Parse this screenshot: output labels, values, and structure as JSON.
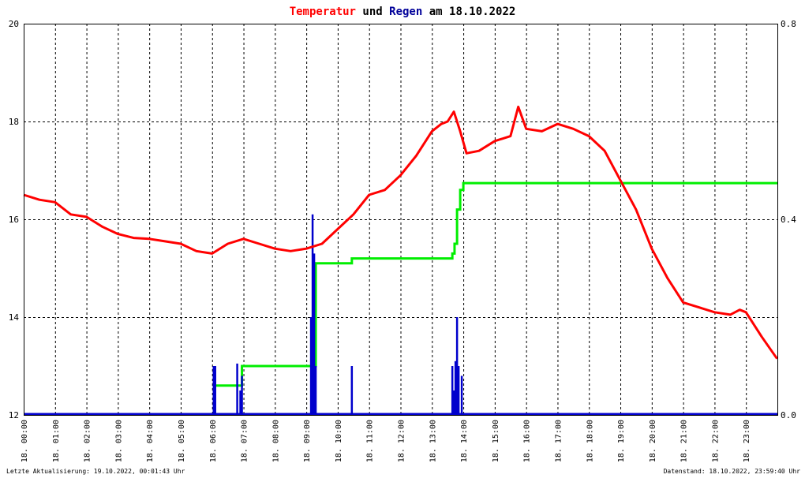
{
  "title": {
    "part1": "Temperatur",
    "part2": " und ",
    "part3": "Regen",
    "part4": " am 18.10.2022"
  },
  "colors": {
    "temperature": "#ff0000",
    "rain": "#0000cc",
    "rain_sum": "#00ee00",
    "title_temperature": "#ff0000",
    "title_rain": "#000099",
    "grid": "#000000"
  },
  "footer": {
    "left": "Letzte Aktualisierung: 19.10.2022, 00:01:43 Uhr",
    "right": "Datenstand: 18.10.2022, 23:59:40 Uhr"
  },
  "chart_data": {
    "type": "line",
    "title": "Temperatur und Regen am 18.10.2022",
    "x_unit": "hour",
    "xlim": [
      0,
      24
    ],
    "x_tick_labels": [
      "18. 00:00",
      "18. 01:00",
      "18. 02:00",
      "18. 03:00",
      "18. 04:00",
      "18. 05:00",
      "18. 06:00",
      "18. 07:00",
      "18. 08:00",
      "18. 09:00",
      "18. 10:00",
      "18. 11:00",
      "18. 12:00",
      "18. 13:00",
      "18. 14:00",
      "18. 15:00",
      "18. 16:00",
      "18. 17:00",
      "18. 18:00",
      "18. 19:00",
      "18. 20:00",
      "18. 21:00",
      "18. 22:00",
      "18. 23:00"
    ],
    "y_left": {
      "lim": [
        12,
        20
      ],
      "ticks": [
        "12",
        "14",
        "16",
        "18",
        "20"
      ]
    },
    "y_right": {
      "lim": [
        0,
        0.8
      ],
      "ticks": [
        "0.0",
        "0.4",
        "0.8"
      ]
    },
    "grid": true,
    "series": [
      {
        "name": "Temperatur",
        "axis": "left",
        "style": "line",
        "points": [
          [
            0,
            16.5
          ],
          [
            0.5,
            16.4
          ],
          [
            1,
            16.35
          ],
          [
            1.5,
            16.1
          ],
          [
            2,
            16.05
          ],
          [
            2.5,
            15.85
          ],
          [
            3,
            15.7
          ],
          [
            3.5,
            15.62
          ],
          [
            4,
            15.6
          ],
          [
            4.5,
            15.55
          ],
          [
            5,
            15.5
          ],
          [
            5.5,
            15.35
          ],
          [
            6,
            15.3
          ],
          [
            6.5,
            15.5
          ],
          [
            7,
            15.6
          ],
          [
            7.5,
            15.5
          ],
          [
            8,
            15.4
          ],
          [
            8.5,
            15.35
          ],
          [
            9,
            15.4
          ],
          [
            9.5,
            15.5
          ],
          [
            10,
            15.8
          ],
          [
            10.5,
            16.1
          ],
          [
            11,
            16.5
          ],
          [
            11.5,
            16.6
          ],
          [
            12,
            16.9
          ],
          [
            12.5,
            17.3
          ],
          [
            13,
            17.8
          ],
          [
            13.3,
            17.95
          ],
          [
            13.5,
            18.0
          ],
          [
            13.7,
            18.2
          ],
          [
            13.9,
            17.8
          ],
          [
            14.1,
            17.35
          ],
          [
            14.5,
            17.4
          ],
          [
            15,
            17.6
          ],
          [
            15.5,
            17.7
          ],
          [
            15.75,
            18.3
          ],
          [
            16,
            17.85
          ],
          [
            16.5,
            17.8
          ],
          [
            17,
            17.95
          ],
          [
            17.5,
            17.85
          ],
          [
            18,
            17.7
          ],
          [
            18.5,
            17.4
          ],
          [
            19,
            16.8
          ],
          [
            19.5,
            16.2
          ],
          [
            20,
            15.4
          ],
          [
            20.5,
            14.8
          ],
          [
            21,
            14.3
          ],
          [
            21.5,
            14.2
          ],
          [
            22,
            14.1
          ],
          [
            22.5,
            14.05
          ],
          [
            22.8,
            14.15
          ],
          [
            23,
            14.1
          ],
          [
            23.5,
            13.6
          ],
          [
            23.99,
            13.15
          ]
        ]
      },
      {
        "name": "Regen",
        "axis": "right",
        "style": "bars",
        "points": [
          [
            6.05,
            0.1
          ],
          [
            6.1,
            0.1
          ],
          [
            6.8,
            0.105
          ],
          [
            6.9,
            0.05
          ],
          [
            6.95,
            0.08
          ],
          [
            9.15,
            0.2
          ],
          [
            9.2,
            0.41
          ],
          [
            9.25,
            0.33
          ],
          [
            9.3,
            0.1
          ],
          [
            10.45,
            0.1
          ],
          [
            13.65,
            0.1
          ],
          [
            13.7,
            0.05
          ],
          [
            13.75,
            0.11
          ],
          [
            13.8,
            0.2
          ],
          [
            13.85,
            0.1
          ],
          [
            13.95,
            0.08
          ]
        ]
      },
      {
        "name": "Regen Summe",
        "axis": "right",
        "style": "step",
        "points": [
          [
            6.05,
            0.06
          ],
          [
            6.8,
            0.06
          ],
          [
            6.95,
            0.1
          ],
          [
            9.2,
            0.1
          ],
          [
            9.3,
            0.31
          ],
          [
            10.45,
            0.32
          ],
          [
            13.65,
            0.33
          ],
          [
            13.72,
            0.35
          ],
          [
            13.8,
            0.42
          ],
          [
            13.9,
            0.46
          ],
          [
            14.0,
            0.474
          ],
          [
            24,
            0.474
          ]
        ]
      }
    ]
  }
}
